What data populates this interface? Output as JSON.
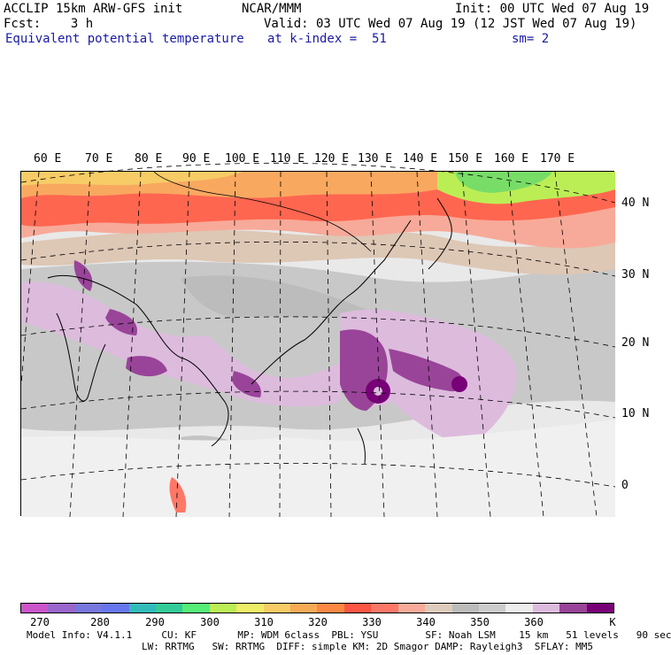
{
  "header": {
    "line1_left": "ACCLIP 15km ARW-GFS init",
    "line1_center": "NCAR/MMM",
    "line1_right": "Init: 00 UTC Wed 07 Aug 19",
    "line2_left": "Fcst:    3 h",
    "line2_right": "Valid: 03 UTC Wed 07 Aug 19 (12 JST Wed 07 Aug 19)",
    "line3_left": "Equivalent potential temperature",
    "line3_center": "at k-index =  51",
    "line3_right": "sm= 2"
  },
  "map": {
    "lon_labels": [
      "60 E",
      "70 E",
      "80 E",
      "90 E",
      "100 E",
      "110 E",
      "120 E",
      "130 E",
      "140 E",
      "150 E",
      "160 E",
      "170 E"
    ],
    "lat_labels": [
      "40 N",
      "30 N",
      "20 N",
      "10 N",
      "0"
    ]
  },
  "colorbar": {
    "colors": [
      "#cc55cc",
      "#9966cc",
      "#7777dd",
      "#6677ee",
      "#33bbbb",
      "#33cc99",
      "#55ee77",
      "#bbee55",
      "#eeee66",
      "#f7cc66",
      "#f7aa55",
      "#ff8844",
      "#ff5544",
      "#ff7766",
      "#f7aa99",
      "#ddccbb",
      "#bbbbbb",
      "#cccccc",
      "#eeeeee",
      "#ddbbdd",
      "#994499",
      "#770077"
    ],
    "labels": [
      "270",
      "280",
      "290",
      "300",
      "310",
      "320",
      "330",
      "340",
      "350",
      "360",
      "K"
    ]
  },
  "footer": {
    "line1": "Model Info: V4.1.1     CU: KF       MP: WDM 6class  PBL: YSU        SF: Noah LSM    15 km   51 levels   90 sec",
    "line2": "LW: RRTMG   SW: RRTMG  DIFF: simple KM: 2D Smagor DAMP: Rayleigh3  SFLAY: MM5"
  }
}
